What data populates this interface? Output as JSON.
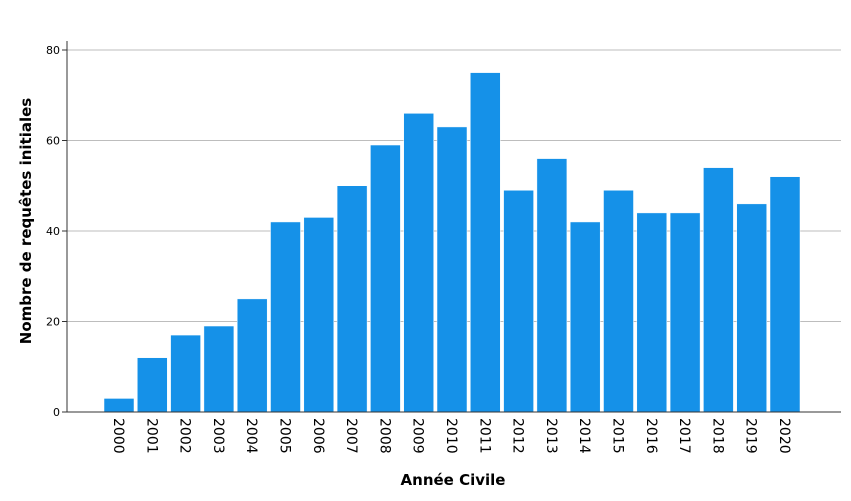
{
  "chart_data": {
    "type": "bar",
    "title": "",
    "xlabel": "Année Civile",
    "ylabel": "Nombre de requêtes initiales",
    "categories": [
      "2000",
      "2001",
      "2002",
      "2003",
      "2004",
      "2005",
      "2006",
      "2007",
      "2008",
      "2009",
      "2010",
      "2011",
      "2012",
      "2013",
      "2014",
      "2015",
      "2016",
      "2017",
      "2018",
      "2019",
      "2020"
    ],
    "values": [
      3,
      12,
      17,
      19,
      25,
      42,
      43,
      50,
      59,
      66,
      63,
      75,
      49,
      56,
      42,
      49,
      44,
      44,
      54,
      46,
      52
    ],
    "ylim": [
      0,
      80
    ],
    "yticks": [
      0,
      20,
      40,
      60,
      80
    ],
    "grid": true,
    "bar_color": "#1591e8",
    "legend": "none"
  }
}
